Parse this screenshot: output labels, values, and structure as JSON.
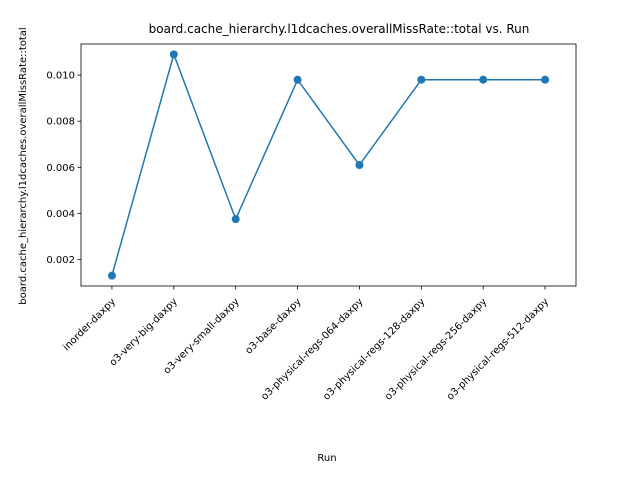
{
  "chart_data": {
    "type": "line",
    "title": "board.cache_hierarchy.l1dcaches.overallMissRate::total vs. Run",
    "xlabel": "Run",
    "ylabel": "board.cache_hierarchy.l1dcaches.overallMissRate::total",
    "categories": [
      "inorder-daxpy",
      "o3-very-big-daxpy",
      "o3-very-small-daxpy",
      "o3-base-daxpy",
      "o3-physical-regs-064-daxpy",
      "o3-physical-regs-128-daxpy",
      "o3-physical-regs-256-daxpy",
      "o3-physical-regs-512-daxpy"
    ],
    "series": [
      {
        "values": [
          0.0013,
          0.0109,
          0.00375,
          0.0098,
          0.0061,
          0.0098,
          0.0098,
          0.0098
        ],
        "color": "#1f77b4"
      }
    ],
    "ylim": [
      0.00085,
      0.01135
    ],
    "yticks": [
      "0.002",
      "0.004",
      "0.006",
      "0.008",
      "0.010"
    ],
    "grid": false,
    "legend": "none"
  }
}
